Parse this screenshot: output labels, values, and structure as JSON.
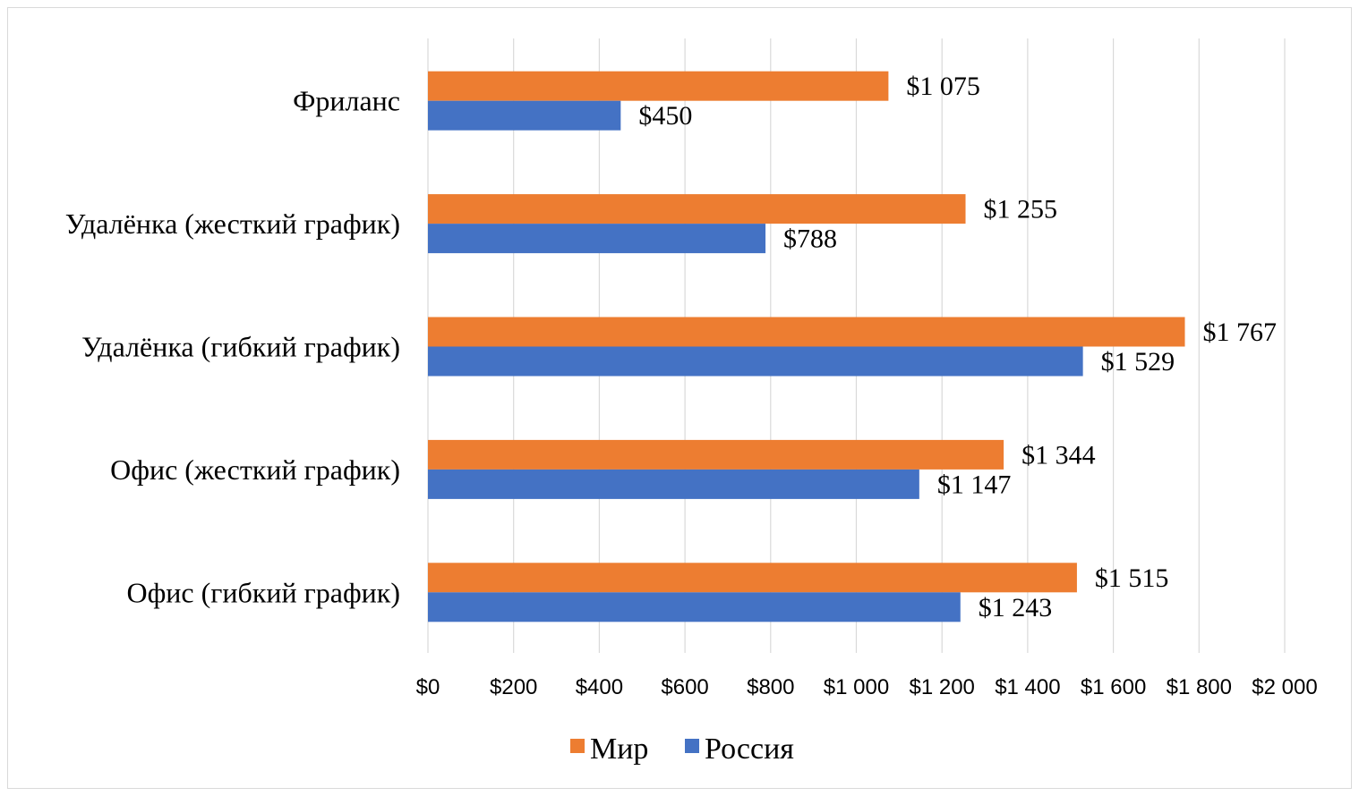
{
  "chart_data": {
    "type": "bar",
    "orientation": "horizontal",
    "title": "",
    "xlabel": "",
    "ylabel": "",
    "categories": [
      "Фриланс",
      "Удалёнка (жесткий график)",
      "Удалёнка (гибкий график)",
      "Офис (жесткий график)",
      "Офис (гибкий график)"
    ],
    "series": [
      {
        "name": "Мир",
        "color": "#ED7D31",
        "values": [
          1075,
          1255,
          1767,
          1344,
          1515
        ],
        "labels": [
          "$1 075",
          "$1 255",
          "$1 767",
          "$1 344",
          "$1 515"
        ]
      },
      {
        "name": "Россия",
        "color": "#4472C4",
        "values": [
          450,
          788,
          1529,
          1147,
          1243
        ],
        "labels": [
          "$450",
          "$788",
          "$1 529",
          "$1 147",
          "$1 243"
        ]
      }
    ],
    "xlim": [
      0,
      2000
    ],
    "x_ticks": [
      0,
      200,
      400,
      600,
      800,
      1000,
      1200,
      1400,
      1600,
      1800,
      2000
    ],
    "x_tick_labels": [
      "$0",
      "$200",
      "$400",
      "$600",
      "$800",
      "$1 000",
      "$1 200",
      "$1 400",
      "$1 600",
      "$1 800",
      "$2 000"
    ],
    "grid": "vertical",
    "legend": "bottom"
  }
}
